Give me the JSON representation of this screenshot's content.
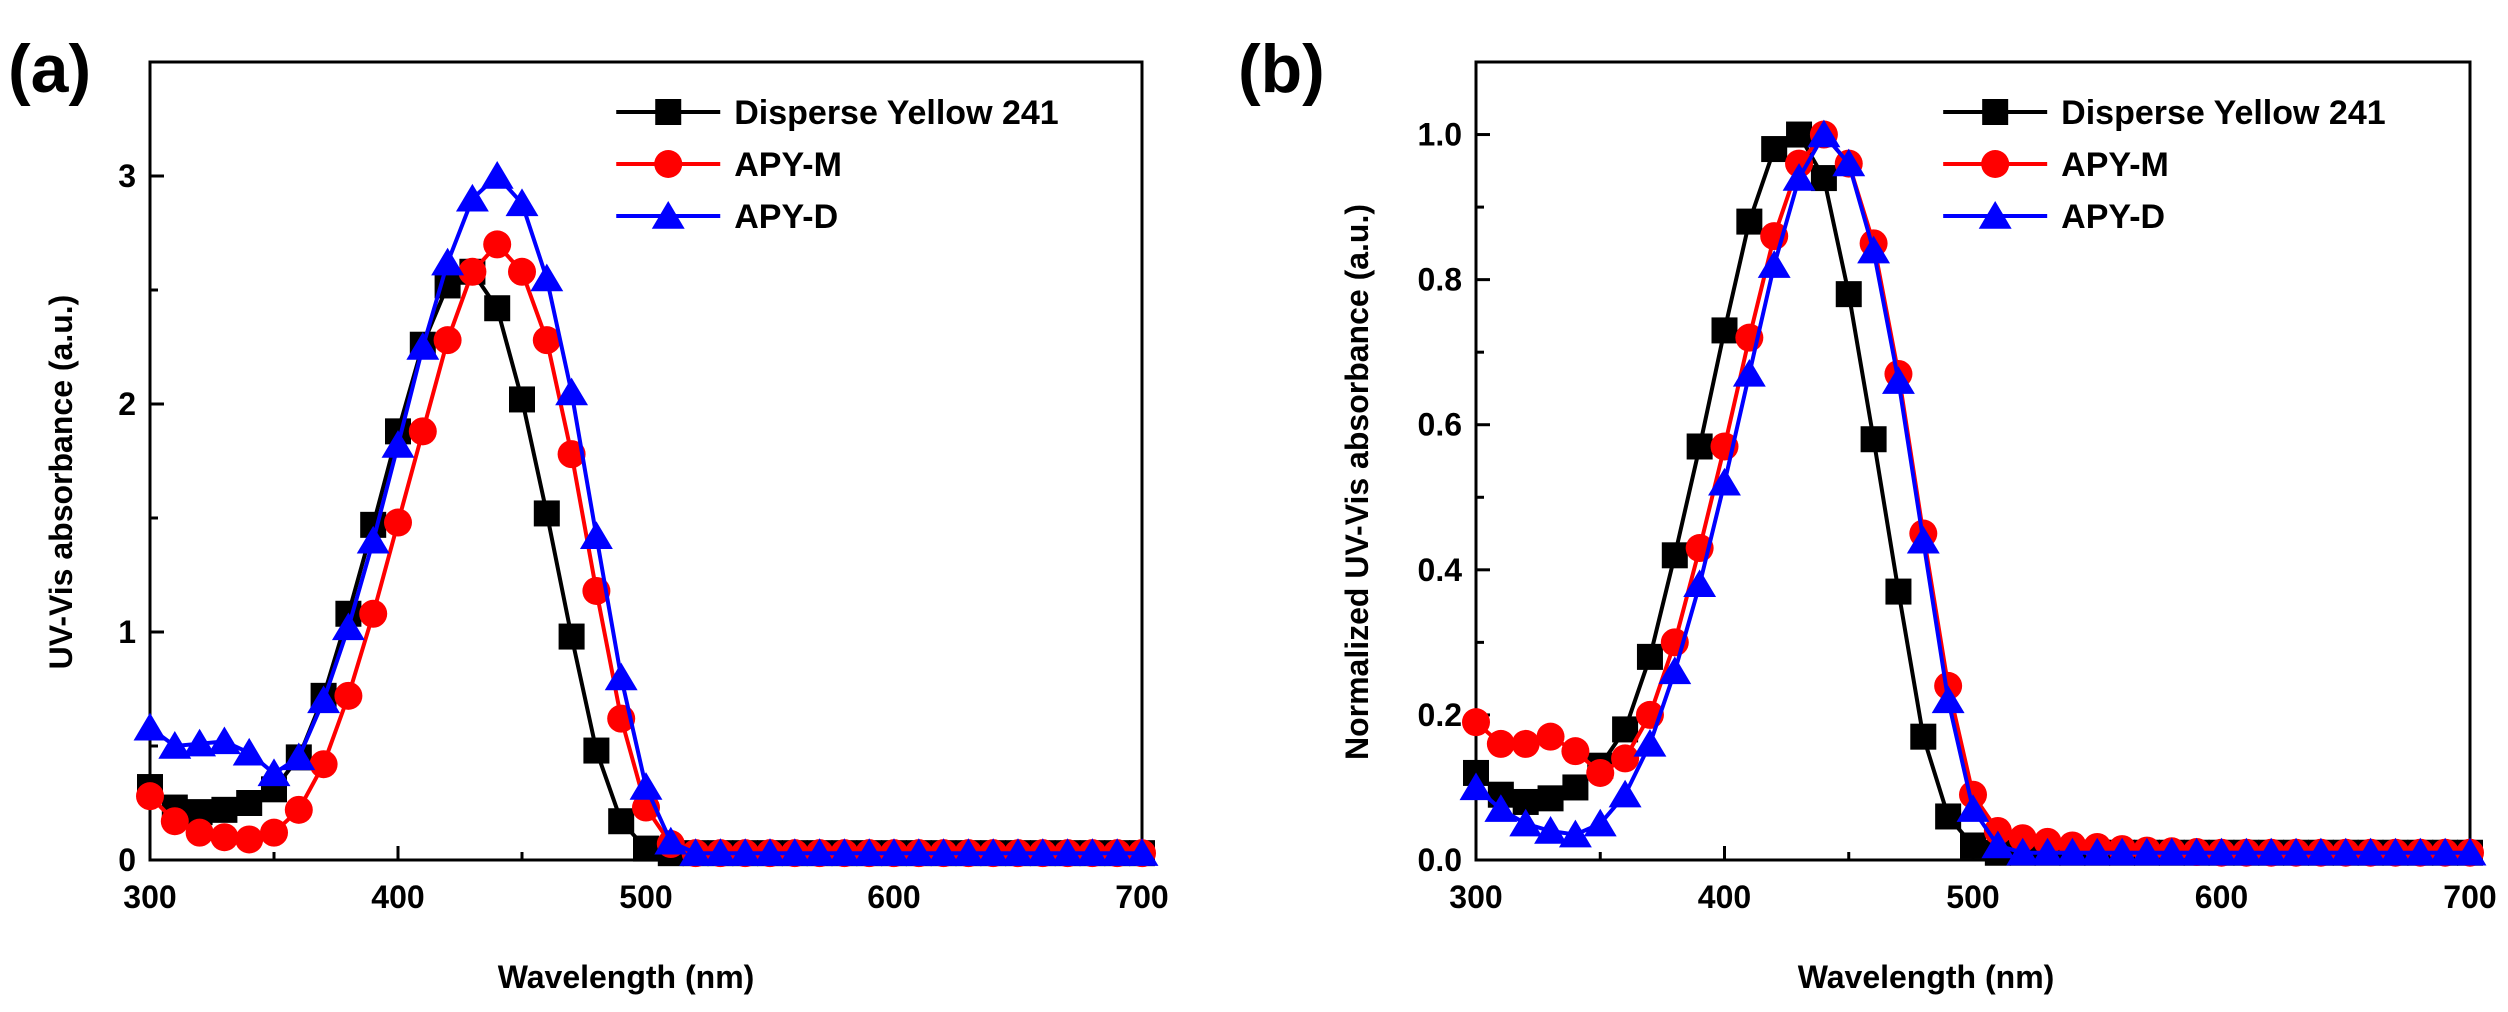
{
  "chart_data": [
    {
      "panel_label": "(a)",
      "type": "line",
      "title": "",
      "xlabel": "Wavelength (nm)",
      "ylabel": "UV-Vis absorbance (a.u.)",
      "xlim": [
        300,
        700
      ],
      "ylim": [
        0,
        3.5
      ],
      "xticks": [
        300,
        400,
        500,
        600,
        700
      ],
      "xtick_labels": [
        "300",
        "400",
        "500",
        "600",
        "700"
      ],
      "yticks": [
        0,
        1,
        2,
        3
      ],
      "ytick_labels": [
        "0",
        "1",
        "2",
        "3"
      ],
      "grid": false,
      "legend_position": "top-right",
      "x": [
        300,
        310,
        320,
        330,
        340,
        350,
        360,
        370,
        380,
        390,
        400,
        410,
        420,
        430,
        440,
        450,
        460,
        470,
        480,
        490,
        500,
        510,
        520,
        530,
        540,
        550,
        560,
        570,
        580,
        590,
        600,
        610,
        620,
        630,
        640,
        650,
        660,
        670,
        680,
        690,
        700
      ],
      "series": [
        {
          "name": "Disperse Yellow 241",
          "color": "#000000",
          "marker": "square",
          "values": [
            0.32,
            0.23,
            0.21,
            0.22,
            0.25,
            0.31,
            0.45,
            0.72,
            1.08,
            1.47,
            1.88,
            2.26,
            2.52,
            2.58,
            2.42,
            2.02,
            1.52,
            0.98,
            0.48,
            0.17,
            0.05,
            0.03,
            0.03,
            0.03,
            0.03,
            0.03,
            0.03,
            0.03,
            0.03,
            0.03,
            0.03,
            0.03,
            0.03,
            0.03,
            0.03,
            0.03,
            0.03,
            0.03,
            0.03,
            0.03,
            0.03
          ]
        },
        {
          "name": "APY-M",
          "color": "#ff0000",
          "marker": "circle",
          "values": [
            0.28,
            0.17,
            0.12,
            0.1,
            0.09,
            0.12,
            0.22,
            0.42,
            0.72,
            1.08,
            1.48,
            1.88,
            2.28,
            2.58,
            2.7,
            2.58,
            2.28,
            1.78,
            1.18,
            0.62,
            0.23,
            0.07,
            0.03,
            0.03,
            0.03,
            0.03,
            0.03,
            0.03,
            0.03,
            0.03,
            0.03,
            0.03,
            0.03,
            0.03,
            0.03,
            0.03,
            0.03,
            0.03,
            0.03,
            0.03,
            0.03
          ]
        },
        {
          "name": "APY-D",
          "color": "#0000ff",
          "marker": "triangle",
          "values": [
            0.58,
            0.5,
            0.51,
            0.52,
            0.47,
            0.38,
            0.45,
            0.7,
            1.02,
            1.4,
            1.82,
            2.25,
            2.62,
            2.9,
            3.0,
            2.88,
            2.55,
            2.05,
            1.42,
            0.8,
            0.32,
            0.08,
            0.03,
            0.03,
            0.03,
            0.03,
            0.03,
            0.03,
            0.03,
            0.03,
            0.03,
            0.03,
            0.03,
            0.03,
            0.03,
            0.03,
            0.03,
            0.03,
            0.03,
            0.03,
            0.03
          ]
        }
      ]
    },
    {
      "panel_label": "(b)",
      "type": "line",
      "title": "",
      "xlabel": "Wavelength (nm)",
      "ylabel": "Normalized UV-Vis absorbance (a.u.)",
      "xlim": [
        300,
        700
      ],
      "ylim": [
        0,
        1.1
      ],
      "xticks": [
        300,
        400,
        500,
        600,
        700
      ],
      "xtick_labels": [
        "300",
        "400",
        "500",
        "600",
        "700"
      ],
      "yticks": [
        0,
        0.2,
        0.4,
        0.6,
        0.8,
        1.0
      ],
      "ytick_labels": [
        "0.0",
        "0.2",
        "0.4",
        "0.6",
        "0.8",
        "1.0"
      ],
      "grid": false,
      "legend_position": "top-right",
      "x": [
        300,
        310,
        320,
        330,
        340,
        350,
        360,
        370,
        380,
        390,
        400,
        410,
        420,
        430,
        440,
        450,
        460,
        470,
        480,
        490,
        500,
        510,
        520,
        530,
        540,
        550,
        560,
        570,
        580,
        590,
        600,
        610,
        620,
        630,
        640,
        650,
        660,
        670,
        680,
        690,
        700
      ],
      "series": [
        {
          "name": "Disperse Yellow 241",
          "color": "#000000",
          "marker": "square",
          "values": [
            0.12,
            0.09,
            0.08,
            0.085,
            0.1,
            0.13,
            0.18,
            0.28,
            0.42,
            0.57,
            0.73,
            0.88,
            0.98,
            1.0,
            0.94,
            0.78,
            0.58,
            0.37,
            0.17,
            0.06,
            0.02,
            0.01,
            0.01,
            0.01,
            0.01,
            0.01,
            0.01,
            0.01,
            0.01,
            0.01,
            0.01,
            0.01,
            0.01,
            0.01,
            0.01,
            0.01,
            0.01,
            0.01,
            0.01,
            0.01,
            0.01
          ]
        },
        {
          "name": "APY-M",
          "color": "#ff0000",
          "marker": "circle",
          "values": [
            0.19,
            0.16,
            0.16,
            0.17,
            0.15,
            0.12,
            0.14,
            0.2,
            0.3,
            0.43,
            0.57,
            0.72,
            0.86,
            0.96,
            1.0,
            0.96,
            0.85,
            0.67,
            0.45,
            0.24,
            0.09,
            0.04,
            0.03,
            0.025,
            0.02,
            0.018,
            0.015,
            0.013,
            0.012,
            0.011,
            0.01,
            0.01,
            0.01,
            0.01,
            0.01,
            0.01,
            0.01,
            0.01,
            0.01,
            0.01,
            0.01
          ]
        },
        {
          "name": "APY-D",
          "color": "#0000ff",
          "marker": "triangle",
          "values": [
            0.1,
            0.07,
            0.05,
            0.04,
            0.035,
            0.05,
            0.09,
            0.16,
            0.26,
            0.38,
            0.52,
            0.67,
            0.82,
            0.94,
            1.0,
            0.96,
            0.84,
            0.66,
            0.44,
            0.22,
            0.07,
            0.02,
            0.01,
            0.01,
            0.01,
            0.01,
            0.01,
            0.01,
            0.01,
            0.01,
            0.01,
            0.01,
            0.01,
            0.01,
            0.01,
            0.01,
            0.01,
            0.01,
            0.01,
            0.01,
            0.01
          ]
        }
      ]
    }
  ]
}
